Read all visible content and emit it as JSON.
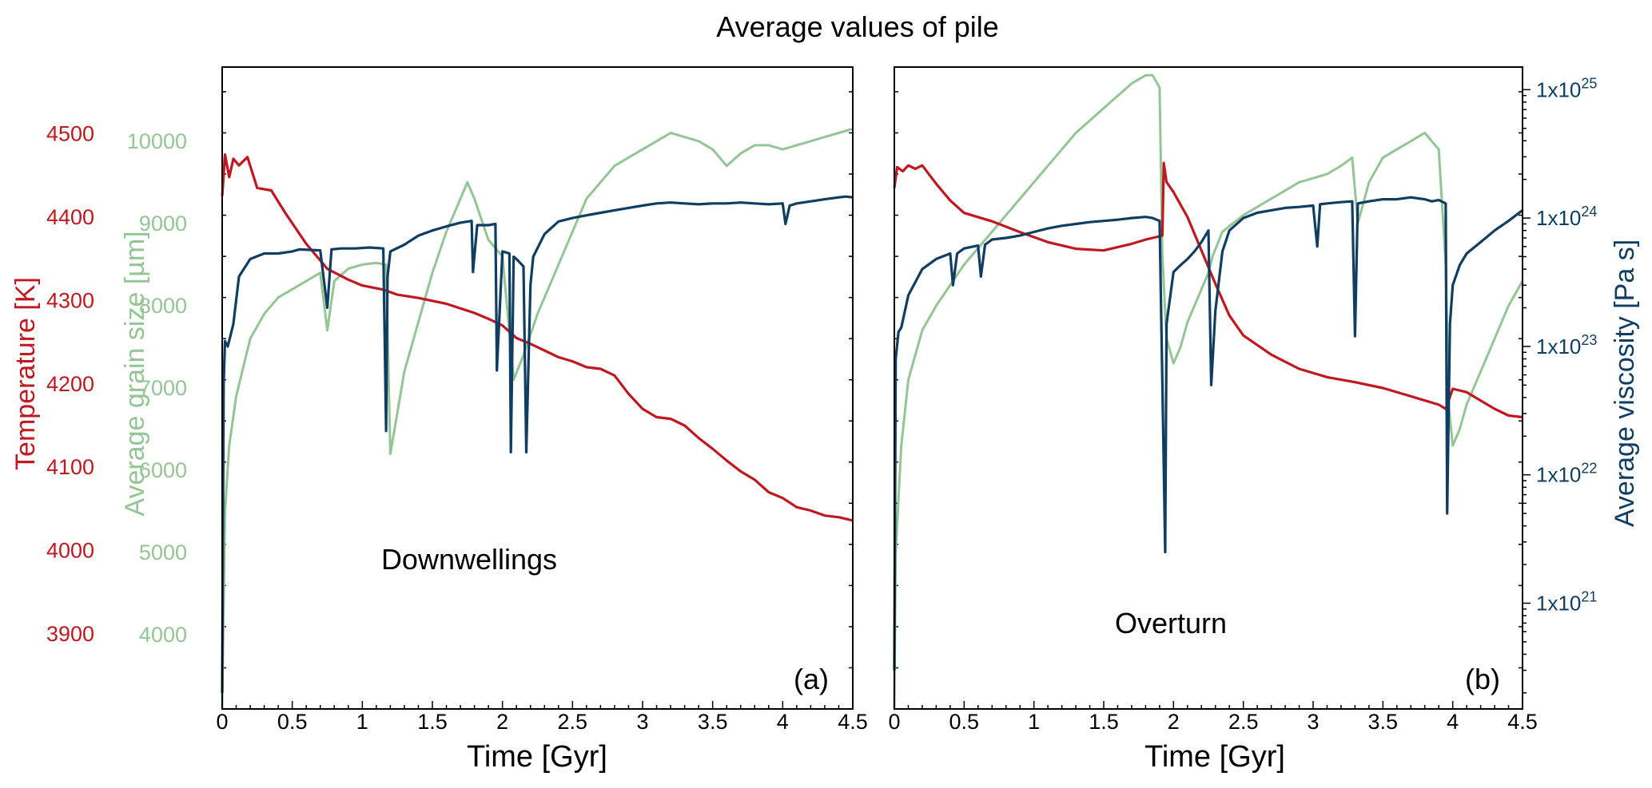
{
  "title": "Average values of pile",
  "colors": {
    "temperature": "#c0181f",
    "grain_size": "#93c595",
    "viscosity": "#0f3e62",
    "axis": "#000000"
  },
  "chart_data": [
    {
      "panel": "(a)",
      "type": "line",
      "annotation": "Downwellings",
      "xlabel": "Time [Gyr]",
      "xlim": [
        0,
        4.5
      ],
      "xticks": [
        "0",
        "0.5",
        "1",
        "1.5",
        "2",
        "2.5",
        "3",
        "3.5",
        "4",
        "4.5"
      ],
      "axes": {
        "temperature": {
          "label": "Temperature [K]",
          "ticks": [
            "3900",
            "4000",
            "4100",
            "4200",
            "4300",
            "4400",
            "4500"
          ],
          "lim": [
            3810,
            4580
          ]
        },
        "grain_size": {
          "label": "Average grain size [µm]",
          "ticks": [
            "4000",
            "5000",
            "6000",
            "7000",
            "8000",
            "9000",
            "10000"
          ],
          "lim": [
            3100,
            10900
          ]
        },
        "viscosity": {
          "lim": [
            1.5e+20,
            1.5e+25
          ],
          "scale": "log"
        }
      },
      "series": [
        {
          "key": "temperature",
          "axis": "temperature",
          "x": [
            0,
            0.02,
            0.05,
            0.08,
            0.12,
            0.18,
            0.25,
            0.35,
            0.45,
            0.6,
            0.75,
            0.9,
            1.0,
            1.15,
            1.25,
            1.4,
            1.6,
            1.8,
            1.9,
            2.0,
            2.1,
            2.2,
            2.3,
            2.4,
            2.5,
            2.6,
            2.7,
            2.8,
            2.9,
            3.0,
            3.1,
            3.2,
            3.3,
            3.4,
            3.5,
            3.6,
            3.7,
            3.8,
            3.9,
            4.0,
            4.1,
            4.2,
            4.3,
            4.4,
            4.5
          ],
          "y": [
            4425,
            4475,
            4448,
            4470,
            4462,
            4472,
            4435,
            4432,
            4405,
            4368,
            4338,
            4325,
            4318,
            4313,
            4307,
            4303,
            4296,
            4285,
            4278,
            4270,
            4255,
            4248,
            4240,
            4232,
            4227,
            4220,
            4218,
            4210,
            4188,
            4170,
            4160,
            4158,
            4150,
            4135,
            4122,
            4108,
            4095,
            4085,
            4070,
            4063,
            4052,
            4048,
            4042,
            4040,
            4036
          ]
        },
        {
          "key": "grain_size",
          "axis": "grain_size",
          "x": [
            0,
            0.02,
            0.05,
            0.1,
            0.2,
            0.3,
            0.4,
            0.5,
            0.6,
            0.7,
            0.75,
            0.8,
            0.9,
            1.0,
            1.1,
            1.17,
            1.2,
            1.3,
            1.5,
            1.6,
            1.7,
            1.75,
            1.8,
            1.9,
            2.0,
            2.08,
            2.15,
            2.25,
            2.4,
            2.5,
            2.6,
            2.7,
            2.8,
            3.0,
            3.1,
            3.2,
            3.3,
            3.4,
            3.5,
            3.6,
            3.7,
            3.8,
            3.9,
            4.0,
            4.1,
            4.2,
            4.3,
            4.4,
            4.5
          ],
          "y": [
            3100,
            5500,
            6300,
            6900,
            7600,
            7900,
            8100,
            8200,
            8300,
            8400,
            7700,
            8300,
            8450,
            8500,
            8520,
            8500,
            6200,
            7200,
            8400,
            8900,
            9300,
            9500,
            9300,
            8800,
            8600,
            7100,
            7400,
            7900,
            8500,
            8900,
            9300,
            9500,
            9700,
            9900,
            10000,
            10100,
            10050,
            10000,
            9900,
            9700,
            9850,
            9950,
            9950,
            9900,
            9950,
            10000,
            10050,
            10100,
            10150
          ]
        },
        {
          "key": "viscosity",
          "axis": "viscosity",
          "x": [
            0,
            0.01,
            0.02,
            0.04,
            0.08,
            0.12,
            0.2,
            0.3,
            0.4,
            0.5,
            0.55,
            0.7,
            0.75,
            0.78,
            0.85,
            0.95,
            1.05,
            1.15,
            1.17,
            1.18,
            1.2,
            1.3,
            1.4,
            1.5,
            1.6,
            1.7,
            1.78,
            1.79,
            1.82,
            1.9,
            1.95,
            1.96,
            2.0,
            2.05,
            2.06,
            2.08,
            2.1,
            2.15,
            2.17,
            2.2,
            2.22,
            2.3,
            2.4,
            2.5,
            2.6,
            2.7,
            2.8,
            2.9,
            3.0,
            3.1,
            3.2,
            3.3,
            3.4,
            3.5,
            3.6,
            3.7,
            3.8,
            3.9,
            4.0,
            4.02,
            4.05,
            4.1,
            4.2,
            4.3,
            4.4,
            4.45,
            4.5
          ],
          "y": [
            2e+20,
            5e+22,
            1.1e+23,
            1e+23,
            1.5e+23,
            3.5e+23,
            4.8e+23,
            5.3e+23,
            5.3e+23,
            5.5e+23,
            5.7e+23,
            5.6e+23,
            2e+23,
            5.7e+23,
            5.8e+23,
            5.8e+23,
            5.9e+23,
            5.8e+23,
            2.2e+22,
            3.5e+23,
            5.5e+23,
            6.2e+23,
            7.3e+23,
            8e+23,
            8.6e+23,
            9.2e+23,
            9.5e+23,
            3.8e+23,
            8.8e+23,
            8.8e+23,
            9e+23,
            6.5e+22,
            5.5e+23,
            5.3e+23,
            1.5e+22,
            5e+23,
            4.8e+23,
            4.2e+23,
            1.5e+22,
            3e+23,
            5e+23,
            7.5e+23,
            9.4e+23,
            1e+24,
            1.05e+24,
            1.1e+24,
            1.15e+24,
            1.2e+24,
            1.25e+24,
            1.3e+24,
            1.32e+24,
            1.3e+24,
            1.28e+24,
            1.3e+24,
            1.3e+24,
            1.32e+24,
            1.3e+24,
            1.28e+24,
            1.3e+24,
            9e+23,
            1.25e+24,
            1.3e+24,
            1.35e+24,
            1.4e+24,
            1.45e+24,
            1.47e+24,
            1.45e+24
          ]
        }
      ]
    },
    {
      "panel": "(b)",
      "type": "line",
      "annotation": "Overturn",
      "xlabel": "Time [Gyr]",
      "xlim": [
        0,
        4.5
      ],
      "xticks": [
        "0",
        "0.5",
        "1",
        "1.5",
        "2",
        "2.5",
        "3",
        "3.5",
        "4",
        "4.5"
      ],
      "axes": {
        "temperature": {
          "lim": [
            3810,
            4580
          ]
        },
        "grain_size": {
          "lim": [
            3100,
            10900
          ]
        },
        "viscosity": {
          "label": "Average viscosity [Pa s]",
          "ticks": [
            {
              "base": "1x10",
              "exp": "21"
            },
            {
              "base": "1x10",
              "exp": "22"
            },
            {
              "base": "1x10",
              "exp": "23"
            },
            {
              "base": "1x10",
              "exp": "24"
            },
            {
              "base": "1x10",
              "exp": "25"
            }
          ],
          "lim": [
            1.5e+20,
            1.5e+25
          ],
          "scale": "log"
        }
      },
      "series": [
        {
          "key": "temperature",
          "axis": "temperature",
          "x": [
            0,
            0.02,
            0.06,
            0.1,
            0.15,
            0.2,
            0.3,
            0.4,
            0.5,
            0.7,
            0.9,
            1.1,
            1.3,
            1.5,
            1.7,
            1.8,
            1.9,
            1.92,
            1.93,
            1.95,
            2.0,
            2.1,
            2.2,
            2.3,
            2.4,
            2.5,
            2.7,
            2.9,
            3.1,
            3.3,
            3.5,
            3.7,
            3.9,
            3.95,
            4.0,
            4.1,
            4.2,
            4.3,
            4.4,
            4.5
          ],
          "y": [
            4435,
            4460,
            4455,
            4462,
            4458,
            4462,
            4440,
            4420,
            4405,
            4395,
            4382,
            4370,
            4362,
            4360,
            4368,
            4373,
            4377,
            4378,
            4465,
            4442,
            4430,
            4400,
            4360,
            4320,
            4282,
            4258,
            4235,
            4218,
            4208,
            4202,
            4195,
            4185,
            4175,
            4170,
            4194,
            4190,
            4180,
            4170,
            4162,
            4160
          ]
        },
        {
          "key": "grain_size",
          "axis": "grain_size",
          "x": [
            0,
            0.01,
            0.05,
            0.1,
            0.2,
            0.3,
            0.5,
            0.7,
            0.9,
            1.1,
            1.3,
            1.5,
            1.7,
            1.8,
            1.85,
            1.9,
            1.92,
            1.95,
            2.0,
            2.05,
            2.1,
            2.15,
            2.2,
            2.25,
            2.28,
            2.35,
            2.5,
            2.7,
            2.9,
            3.1,
            3.2,
            3.28,
            3.32,
            3.4,
            3.5,
            3.6,
            3.7,
            3.8,
            3.9,
            3.95,
            3.97,
            4.0,
            4.05,
            4.1,
            4.2,
            4.3,
            4.4,
            4.5
          ],
          "y": [
            3100,
            5000,
            6300,
            7100,
            7700,
            8000,
            8500,
            8900,
            9300,
            9700,
            10100,
            10400,
            10700,
            10800,
            10800,
            10650,
            8600,
            7600,
            7300,
            7500,
            7800,
            8000,
            8200,
            8400,
            8600,
            8900,
            9100,
            9300,
            9500,
            9600,
            9700,
            9800,
            9000,
            9500,
            9800,
            9900,
            10000,
            10100,
            9900,
            8500,
            6800,
            6300,
            6500,
            6800,
            7200,
            7600,
            8000,
            8300
          ]
        },
        {
          "key": "viscosity",
          "axis": "viscosity",
          "x": [
            0,
            0.01,
            0.03,
            0.05,
            0.1,
            0.2,
            0.3,
            0.4,
            0.42,
            0.45,
            0.5,
            0.6,
            0.62,
            0.65,
            0.7,
            0.8,
            0.9,
            1.0,
            1.1,
            1.2,
            1.3,
            1.4,
            1.5,
            1.6,
            1.7,
            1.8,
            1.85,
            1.9,
            1.93,
            1.94,
            1.95,
            2.0,
            2.05,
            2.1,
            2.15,
            2.2,
            2.25,
            2.27,
            2.3,
            2.35,
            2.4,
            2.5,
            2.6,
            2.7,
            2.8,
            2.9,
            3.0,
            3.03,
            3.05,
            3.1,
            3.2,
            3.28,
            3.3,
            3.32,
            3.4,
            3.5,
            3.6,
            3.7,
            3.8,
            3.85,
            3.9,
            3.95,
            3.96,
            3.98,
            4.0,
            4.05,
            4.1,
            4.2,
            4.3,
            4.4,
            4.5
          ],
          "y": [
            3e+20,
            8e+22,
            1.3e+23,
            1.4e+23,
            2.5e+23,
            4e+23,
            4.8e+23,
            5.3e+23,
            3e+23,
            5.3e+23,
            5.8e+23,
            6.1e+23,
            3.5e+23,
            6.2e+23,
            6.8e+23,
            7e+23,
            7.3e+23,
            7.8e+23,
            8.3e+23,
            8.7e+23,
            9e+23,
            9.3e+23,
            9.5e+23,
            9.7e+23,
            1e+24,
            1.02e+24,
            1e+24,
            9.5e+23,
            1.2e+22,
            2.5e+21,
            1.5e+23,
            3.8e+23,
            4.3e+23,
            4.8e+23,
            5.5e+23,
            6.5e+23,
            8e+23,
            5e+22,
            1.9e+23,
            5.5e+23,
            8e+23,
            1e+24,
            1.1e+24,
            1.15e+24,
            1.2e+24,
            1.22e+24,
            1.25e+24,
            6e+23,
            1.28e+24,
            1.3e+24,
            1.33e+24,
            1.35e+24,
            1.2e+23,
            1.3e+24,
            1.35e+24,
            1.4e+24,
            1.4e+24,
            1.45e+24,
            1.4e+24,
            1.35e+24,
            1.38e+24,
            1.3e+24,
            5e+21,
            1.5e+23,
            3e+23,
            4.3e+23,
            5.3e+23,
            6.5e+23,
            8e+23,
            9.5e+23,
            1.15e+24
          ]
        }
      ]
    }
  ]
}
